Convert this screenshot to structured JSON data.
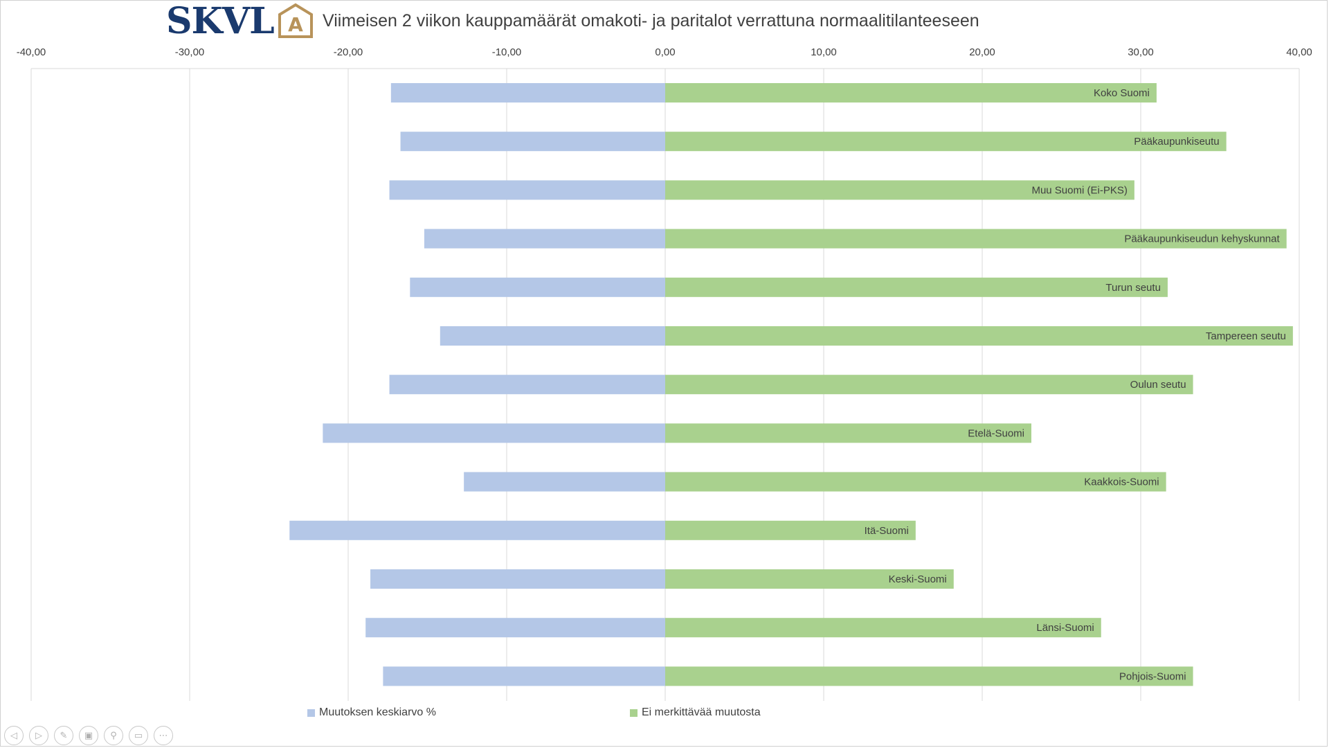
{
  "logo": {
    "text": "SKVL",
    "mark_letter": "A",
    "brand_color": "#1a3a6e",
    "mark_color": "#b8935a"
  },
  "chart_data": {
    "type": "bar",
    "orientation": "horizontal",
    "title": "Viimeisen 2 viikon kauppamäärät omakoti- ja paritalot verrattuna normaalitilanteeseen",
    "xlim": [
      -40,
      40
    ],
    "x_ticks": [
      "-40,00",
      "-30,00",
      "-20,00",
      "-10,00",
      "0,00",
      "10,00",
      "20,00",
      "30,00",
      "40,00"
    ],
    "x_tick_values": [
      -40,
      -30,
      -20,
      -10,
      0,
      10,
      20,
      30,
      40
    ],
    "x_axis_position": "top",
    "grid": true,
    "legend_position": "bottom",
    "categories": [
      "Koko Suomi",
      "Pääkaupunkiseutu",
      "Muu Suomi (Ei-PKS)",
      "Pääkaupunkiseudun kehyskunnat",
      "Turun seutu",
      "Tampereen seutu",
      "Oulun seutu",
      "Etelä-Suomi",
      "Kaakkois-Suomi",
      "Itä-Suomi",
      "Keski-Suomi",
      "Länsi-Suomi",
      "Pohjois-Suomi"
    ],
    "series": [
      {
        "name": "Muutoksen keskiarvo %",
        "color": "#b4c7e7",
        "values": [
          -17.3,
          -16.7,
          -17.4,
          -15.2,
          -16.1,
          -14.2,
          -17.4,
          -21.6,
          -12.7,
          -23.7,
          -18.6,
          -18.9,
          -17.8
        ]
      },
      {
        "name": "Ei merkittävää muutosta",
        "color": "#a9d18e",
        "values": [
          31.0,
          35.4,
          29.6,
          39.2,
          31.7,
          39.6,
          33.3,
          23.1,
          31.6,
          15.8,
          18.2,
          27.5,
          33.3
        ]
      }
    ]
  },
  "legend": {
    "items": [
      {
        "label": "Muutoksen keskiarvo %",
        "color": "#b4c7e7"
      },
      {
        "label": "Ei merkittävää muutosta",
        "color": "#a9d18e"
      }
    ]
  },
  "nav_controls": [
    {
      "icon": "previous-slide-icon",
      "glyph": "◁"
    },
    {
      "icon": "next-slide-icon",
      "glyph": "▷"
    },
    {
      "icon": "pen-icon",
      "glyph": "✎"
    },
    {
      "icon": "slides-grid-icon",
      "glyph": "▣"
    },
    {
      "icon": "zoom-icon",
      "glyph": "⚲"
    },
    {
      "icon": "subtitles-icon",
      "glyph": "▭"
    },
    {
      "icon": "more-options-icon",
      "glyph": "⋯"
    }
  ]
}
